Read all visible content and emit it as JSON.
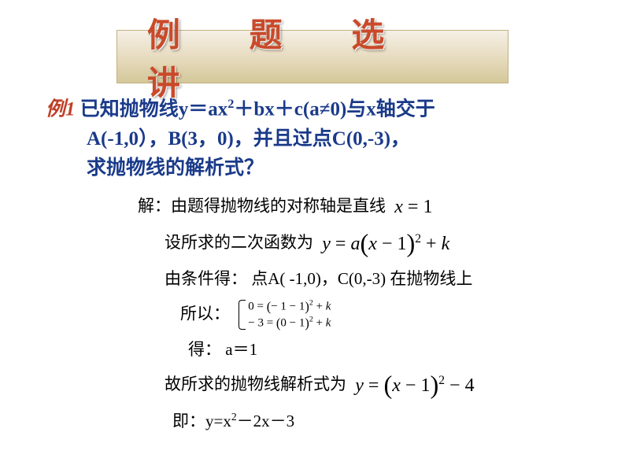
{
  "title": "例 题 选 讲",
  "problem": {
    "label": "例1",
    "line1_a": " 已知抛物线y＝ax",
    "line1_b": "＋bx＋c(a≠0)与x轴交于",
    "line2": "A(-1,0），B(3，0)，并且过点C(0,-3)，",
    "line3": "求抛物线的解析式？"
  },
  "solution": {
    "s1_prefix": "解：由题得抛物线的对称轴是直线",
    "s1_eq": "x = 1",
    "s2_prefix": "设所求的二次函数为",
    "s2_eq_a": "y = a",
    "s2_eq_b": "x − 1",
    "s2_eq_c": " + k",
    "s3_prefix": "由条件得：",
    "s3_text": "点A( -1,0)，C(0,-3) 在抛物线上",
    "s4_prefix": "所以：",
    "s4_sys1": "0 = (− 1 − 1)² + k",
    "s4_sys2": "− 3 = (0 − 1)² + k",
    "s5_prefix": "得：",
    "s5_eq": "a＝1",
    "s6_prefix": "故所求的抛物线解析式为",
    "s6_eq_a": "y = ",
    "s6_eq_b": "x − 1",
    "s6_eq_c": " − 4",
    "s7_prefix": "即：",
    "s7_eq": "y=x²－2x－3"
  },
  "style": {
    "bg": "#ffffff",
    "title_color": "#c94a2a",
    "title_bg_top": "#f5f0e6",
    "title_bg_bot": "#d4c89a",
    "problem_color": "#1a3a8a",
    "example_label_color": "#c04028",
    "solution_color": "#000000",
    "title_fontsize": 42,
    "problem_fontsize": 25,
    "solution_fontsize": 21
  }
}
